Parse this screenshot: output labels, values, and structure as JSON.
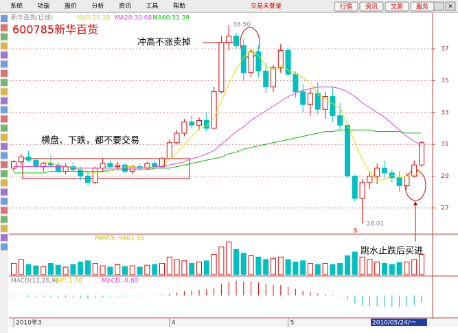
{
  "menu": {
    "items": [
      "系统",
      "功能",
      "报价",
      "分析",
      "资讯",
      "工具",
      "帮助"
    ],
    "status": "交易未登录",
    "buttons": [
      "行情",
      "资讯",
      "交易",
      "服务"
    ]
  },
  "chart_data": {
    "type": "candlestick",
    "title": "新华百货(日线)",
    "stock": "600785新华百货",
    "ohlc": [
      [
        29.5,
        30.0,
        29.3,
        29.9
      ],
      [
        29.9,
        30.4,
        29.7,
        30.2
      ],
      [
        30.2,
        30.6,
        29.9,
        30.0
      ],
      [
        30.0,
        30.1,
        29.4,
        29.6
      ],
      [
        29.6,
        29.9,
        29.3,
        29.8
      ],
      [
        29.8,
        30.3,
        29.6,
        29.7
      ],
      [
        29.7,
        29.9,
        29.2,
        29.3
      ],
      [
        29.3,
        29.8,
        29.1,
        29.6
      ],
      [
        29.6,
        29.9,
        29.3,
        29.4
      ],
      [
        29.4,
        29.6,
        28.7,
        29.0
      ],
      [
        29.0,
        29.3,
        28.4,
        28.6
      ],
      [
        28.6,
        29.6,
        28.5,
        29.5
      ],
      [
        29.5,
        30.1,
        29.3,
        29.8
      ],
      [
        29.8,
        30.0,
        29.5,
        29.6
      ],
      [
        29.6,
        29.9,
        29.4,
        29.7
      ],
      [
        29.7,
        29.8,
        29.2,
        29.3
      ],
      [
        29.3,
        29.7,
        29.1,
        29.6
      ],
      [
        29.6,
        29.8,
        29.4,
        29.5
      ],
      [
        29.5,
        29.9,
        29.4,
        29.8
      ],
      [
        29.8,
        30.0,
        29.5,
        29.6
      ],
      [
        29.6,
        30.2,
        29.5,
        30.1
      ],
      [
        30.1,
        31.3,
        30.0,
        31.1
      ],
      [
        31.1,
        31.9,
        31.0,
        31.7
      ],
      [
        31.7,
        32.6,
        31.5,
        32.4
      ],
      [
        32.4,
        32.8,
        32.0,
        32.2
      ],
      [
        32.2,
        32.7,
        31.9,
        32.5
      ],
      [
        32.5,
        33.0,
        31.8,
        32.0
      ],
      [
        32.0,
        34.6,
        32.0,
        34.3
      ],
      [
        34.3,
        37.8,
        34.2,
        37.4
      ],
      [
        37.4,
        38.5,
        36.9,
        37.8
      ],
      [
        37.8,
        38.0,
        37.0,
        37.2
      ],
      [
        37.2,
        37.6,
        35.0,
        35.5
      ],
      [
        35.5,
        37.0,
        35.2,
        36.8
      ],
      [
        36.8,
        37.2,
        35.2,
        35.6
      ],
      [
        35.6,
        36.1,
        34.2,
        34.6
      ],
      [
        34.6,
        36.0,
        34.3,
        35.8
      ],
      [
        35.8,
        37.3,
        35.5,
        36.9
      ],
      [
        36.9,
        37.1,
        35.3,
        35.4
      ],
      [
        35.4,
        35.6,
        33.9,
        34.3
      ],
      [
        34.3,
        34.8,
        33.0,
        33.5
      ],
      [
        33.5,
        34.5,
        32.8,
        34.2
      ],
      [
        34.2,
        34.9,
        32.9,
        33.2
      ],
      [
        33.2,
        34.3,
        32.6,
        34.0
      ],
      [
        34.0,
        34.6,
        32.4,
        32.8
      ],
      [
        32.8,
        33.6,
        31.9,
        32.2
      ],
      [
        32.2,
        32.3,
        28.9,
        29.0
      ],
      [
        29.0,
        29.1,
        27.4,
        27.6
      ],
      [
        27.6,
        28.8,
        26.01,
        28.6
      ],
      [
        28.6,
        29.3,
        28.2,
        29.0
      ],
      [
        29.0,
        29.8,
        28.5,
        29.5
      ],
      [
        29.5,
        30.0,
        28.9,
        29.2
      ],
      [
        29.2,
        29.4,
        28.6,
        28.9
      ],
      [
        28.9,
        29.3,
        28.0,
        28.4
      ],
      [
        28.4,
        29.2,
        28.2,
        29.0
      ],
      [
        29.0,
        30.0,
        28.9,
        29.7
      ],
      [
        29.7,
        31.2,
        29.6,
        31.1
      ]
    ],
    "series": [
      {
        "name": "MA5:29.28",
        "color": "#e0e000",
        "values": [
          null,
          null,
          null,
          null,
          29.9,
          29.86,
          29.68,
          29.6,
          29.56,
          29.4,
          29.18,
          29.22,
          29.26,
          29.3,
          29.44,
          29.58,
          29.6,
          29.54,
          29.58,
          29.56,
          29.72,
          30.02,
          30.46,
          30.98,
          31.5,
          31.98,
          32.16,
          32.68,
          33.68,
          34.8,
          35.74,
          36.44,
          36.94,
          36.58,
          35.94,
          35.66,
          35.94,
          35.66,
          35.4,
          35.18,
          34.86,
          34.12,
          33.84,
          33.54,
          33.28,
          32.24,
          31.12,
          30.04,
          29.28,
          28.74,
          28.78,
          29.04,
          29,
          29,
          29.04,
          29.42
        ]
      },
      {
        "name": "MA20:30.68",
        "color": "#e040e0",
        "values": [
          29.6,
          29.6,
          29.6,
          29.6,
          29.6,
          29.6,
          29.6,
          29.6,
          29.5,
          29.5,
          29.5,
          29.5,
          29.5,
          29.5,
          29.5,
          29.5,
          29.5,
          29.5,
          29.5,
          29.6,
          29.6,
          29.7,
          29.8,
          29.9,
          30.1,
          30.2,
          30.4,
          30.6,
          31.0,
          31.4,
          31.8,
          32.1,
          32.5,
          32.8,
          33.1,
          33.4,
          33.7,
          34.0,
          34.2,
          34.4,
          34.5,
          34.6,
          34.6,
          34.6,
          34.5,
          34.3,
          34.0,
          33.6,
          33.3,
          33.0,
          32.7,
          32.3,
          31.9,
          31.5,
          31.2,
          30.9
        ]
      },
      {
        "name": "MA60:31.39",
        "color": "#00c000",
        "values": [
          29.2,
          29.2,
          29.2,
          29.2,
          29.2,
          29.3,
          29.3,
          29.3,
          29.3,
          29.3,
          29.3,
          29.3,
          29.3,
          29.4,
          29.4,
          29.4,
          29.4,
          29.4,
          29.4,
          29.5,
          29.5,
          29.5,
          29.6,
          29.7,
          29.8,
          29.9,
          30.0,
          30.1,
          30.2,
          30.4,
          30.5,
          30.7,
          30.8,
          30.9,
          31.0,
          31.1,
          31.2,
          31.3,
          31.4,
          31.5,
          31.6,
          31.7,
          31.8,
          31.8,
          31.9,
          31.9,
          31.9,
          31.9,
          31.9,
          31.8,
          31.8,
          31.8,
          31.8,
          31.7,
          31.7,
          31.7
        ]
      }
    ],
    "ylim": [
      25.4,
      39.2
    ],
    "yticks": [
      27,
      29,
      31,
      33,
      35,
      37
    ],
    "high_label": {
      "value": 38.5,
      "label": "38.50"
    },
    "low_label": 26.01,
    "signal": "S",
    "categories": [
      "2010年3",
      null,
      null,
      null,
      null,
      null,
      null,
      null,
      null,
      null,
      null,
      null,
      null,
      null,
      null,
      null,
      null,
      null,
      null,
      null,
      null,
      "4",
      null,
      null,
      null,
      null,
      null,
      null,
      null,
      null,
      null,
      null,
      null,
      null,
      null,
      null,
      null,
      "5",
      null,
      null,
      null,
      null,
      null,
      null,
      null,
      null,
      null,
      null,
      null,
      null,
      null,
      null,
      null,
      null,
      null,
      null
    ],
    "cursor_date": "2010/05/24/一",
    "volume": {
      "label": "MAVOL:9461.10",
      "ylim": [
        0,
        30000
      ],
      "values": [
        9000,
        12000,
        8000,
        7000,
        6500,
        9000,
        7500,
        6000,
        8000,
        10000,
        11000,
        9000,
        7000,
        6000,
        8000,
        6500,
        7000,
        6000,
        7500,
        8000,
        9000,
        14000,
        12000,
        11000,
        9000,
        10000,
        11000,
        16000,
        22000,
        26000,
        20000,
        17000,
        15000,
        14000,
        12000,
        13000,
        14000,
        12000,
        10000,
        11000,
        9000,
        8000,
        9000,
        8000,
        9000,
        15000,
        18000,
        14000,
        12000,
        10000,
        9000,
        8000,
        9500,
        10000,
        12000,
        16000
      ]
    },
    "macd": {
      "label": "MACD(12,26,9)",
      "dif_label": "DIF:-1.00",
      "macd_label": "MACD:-0.80",
      "ylim": [
        -1.2,
        1.0
      ],
      "values": [
        -0.05,
        -0.04,
        -0.06,
        -0.08,
        -0.1,
        -0.1,
        -0.12,
        -0.12,
        -0.13,
        -0.15,
        -0.18,
        -0.14,
        -0.1,
        -0.08,
        -0.07,
        -0.07,
        -0.06,
        -0.05,
        -0.04,
        -0.03,
        0.02,
        0.1,
        0.18,
        0.26,
        0.3,
        0.34,
        0.36,
        0.45,
        0.65,
        0.8,
        0.85,
        0.8,
        0.82,
        0.75,
        0.65,
        0.62,
        0.6,
        0.5,
        0.38,
        0.26,
        0.2,
        0.12,
        0.08,
        0.02,
        -0.05,
        -0.25,
        -0.45,
        -0.55,
        -0.6,
        -0.62,
        -0.65,
        -0.66,
        -0.68,
        -0.62,
        -0.55,
        -0.4
      ]
    },
    "annotations": [
      "冲高不涨卖掉",
      "横盘、下跌，都不要交易",
      "跳水止跌后买进"
    ]
  }
}
